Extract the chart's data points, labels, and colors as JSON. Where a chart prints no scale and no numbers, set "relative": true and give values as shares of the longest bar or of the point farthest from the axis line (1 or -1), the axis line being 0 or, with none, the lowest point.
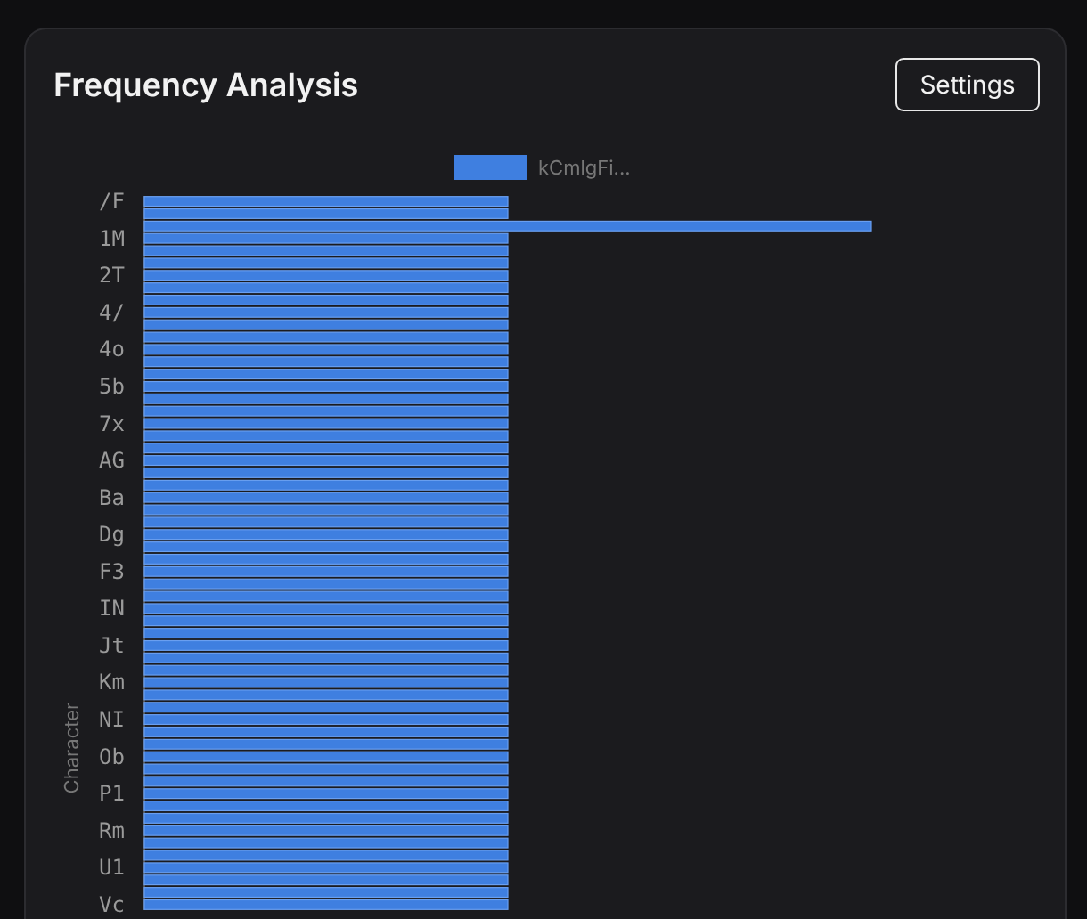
{
  "chart_data": {
    "type": "bar",
    "orientation": "horizontal",
    "relative": true,
    "title": "Frequency Analysis",
    "ylabel": "Character",
    "legend": "top",
    "categories": [
      "/F",
      null,
      null,
      "1M",
      null,
      null,
      "2T",
      null,
      null,
      "4/",
      null,
      null,
      "4o",
      null,
      null,
      "5b",
      null,
      null,
      "7x",
      null,
      null,
      "AG",
      null,
      null,
      "Ba",
      null,
      null,
      "Dg",
      null,
      null,
      "F3",
      null,
      null,
      "IN",
      null,
      null,
      "Jt",
      null,
      null,
      "Km",
      null,
      null,
      "NI",
      null,
      null,
      "Ob",
      null,
      null,
      "P1",
      null,
      null,
      "Rm",
      null,
      null,
      "U1",
      null,
      null,
      "Vc"
    ],
    "series": [
      {
        "name": "kCmlgFi...",
        "color": "#3f7fe0",
        "values": [
          0.5,
          0.5,
          1,
          0.5,
          0.5,
          0.5,
          0.5,
          0.5,
          0.5,
          0.5,
          0.5,
          0.5,
          0.5,
          0.5,
          0.5,
          0.5,
          0.5,
          0.5,
          0.5,
          0.5,
          0.5,
          0.5,
          0.5,
          0.5,
          0.5,
          0.5,
          0.5,
          0.5,
          0.5,
          0.5,
          0.5,
          0.5,
          0.5,
          0.5,
          0.5,
          0.5,
          0.5,
          0.5,
          0.5,
          0.5,
          0.5,
          0.5,
          0.5,
          0.5,
          0.5,
          0.5,
          0.5,
          0.5,
          0.5,
          0.5,
          0.5,
          0.5,
          0.5,
          0.5,
          0.5,
          0.5,
          0.5,
          0.5
        ]
      }
    ],
    "annotations": [
      "Settings"
    ]
  }
}
